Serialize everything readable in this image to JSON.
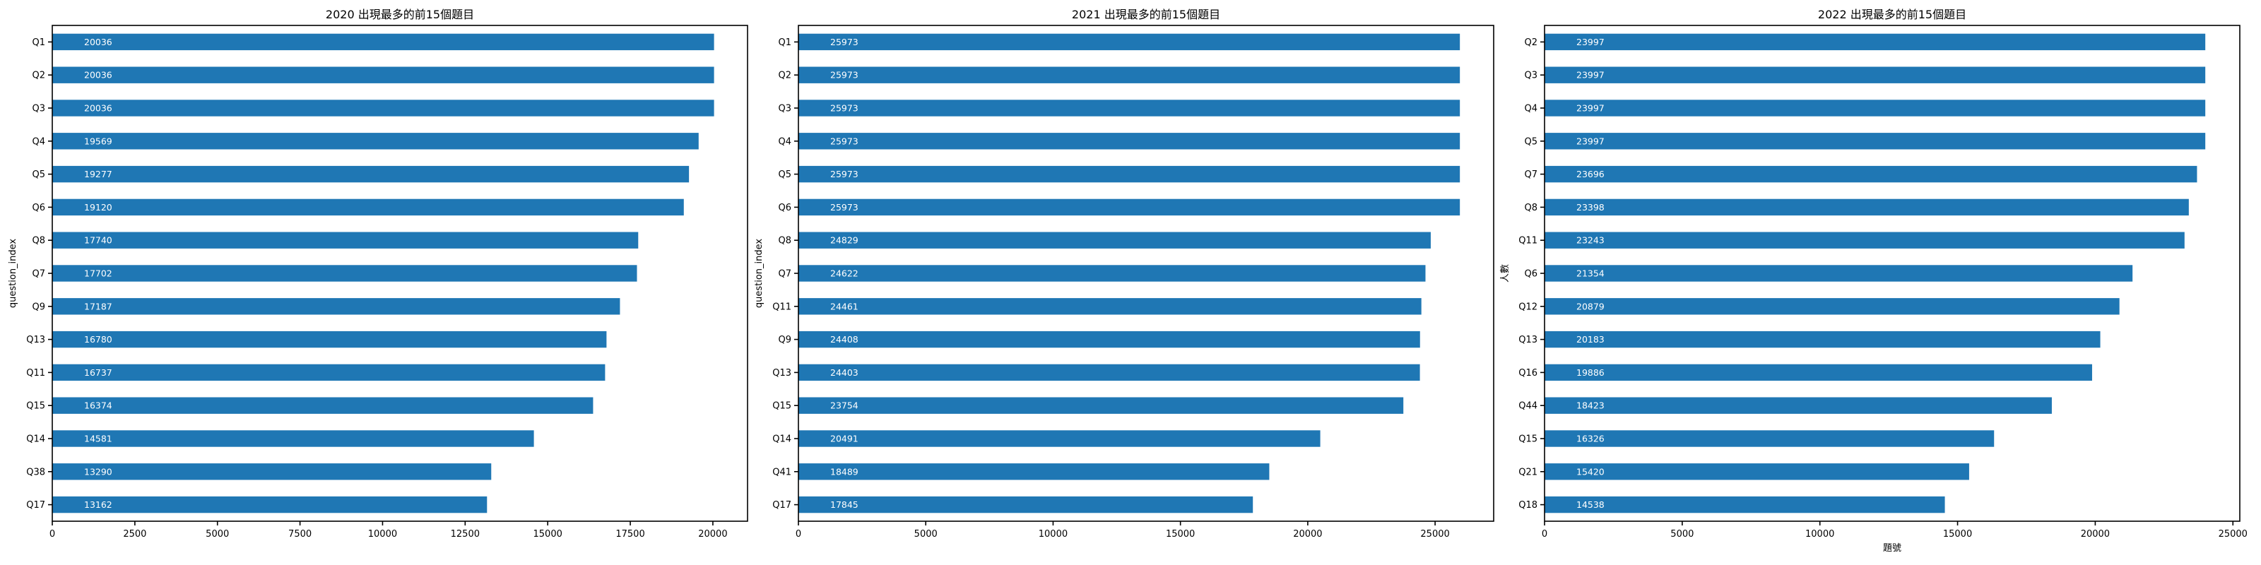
{
  "colors": {
    "bar": "#1f77b4",
    "bar_label": "#ffffff",
    "axis": "#000000"
  },
  "chart_data": [
    {
      "type": "bar",
      "orientation": "horizontal",
      "title": "2020 出現最多的前15個題目",
      "xlabel": "",
      "ylabel": "question_index",
      "categories": [
        "Q1",
        "Q2",
        "Q3",
        "Q4",
        "Q5",
        "Q6",
        "Q8",
        "Q7",
        "Q9",
        "Q13",
        "Q11",
        "Q15",
        "Q14",
        "Q38",
        "Q17"
      ],
      "values": [
        20036,
        20036,
        20036,
        19569,
        19277,
        19120,
        17740,
        17702,
        17187,
        16780,
        16737,
        16374,
        14581,
        13290,
        13162
      ],
      "xlim": [
        0,
        21050
      ],
      "xticks": [
        0,
        2500,
        5000,
        7500,
        10000,
        12500,
        15000,
        17500,
        20000
      ],
      "grid": false,
      "value_labels": true
    },
    {
      "type": "bar",
      "orientation": "horizontal",
      "title": "2021 出現最多的前15個題目",
      "xlabel": "",
      "ylabel": "question_index",
      "categories": [
        "Q1",
        "Q2",
        "Q3",
        "Q4",
        "Q5",
        "Q6",
        "Q8",
        "Q7",
        "Q11",
        "Q9",
        "Q13",
        "Q15",
        "Q14",
        "Q41",
        "Q17"
      ],
      "values": [
        25973,
        25973,
        25973,
        25973,
        25973,
        25973,
        24829,
        24622,
        24461,
        24408,
        24403,
        23754,
        20491,
        18489,
        17845
      ],
      "xlim": [
        0,
        27300
      ],
      "xticks": [
        0,
        5000,
        10000,
        15000,
        20000,
        25000
      ],
      "grid": false,
      "value_labels": true
    },
    {
      "type": "bar",
      "orientation": "horizontal",
      "title": "2022 出現最多的前15個題目",
      "xlabel": "題號",
      "ylabel": "人數",
      "categories": [
        "Q2",
        "Q3",
        "Q4",
        "Q5",
        "Q7",
        "Q8",
        "Q11",
        "Q6",
        "Q12",
        "Q13",
        "Q16",
        "Q44",
        "Q15",
        "Q21",
        "Q18"
      ],
      "values": [
        23997,
        23997,
        23997,
        23997,
        23696,
        23398,
        23243,
        21354,
        20879,
        20183,
        19886,
        18423,
        16326,
        15420,
        14538
      ],
      "xlim": [
        0,
        25250
      ],
      "xticks": [
        0,
        5000,
        10000,
        15000,
        20000,
        25000
      ],
      "grid": false,
      "value_labels": true
    }
  ]
}
